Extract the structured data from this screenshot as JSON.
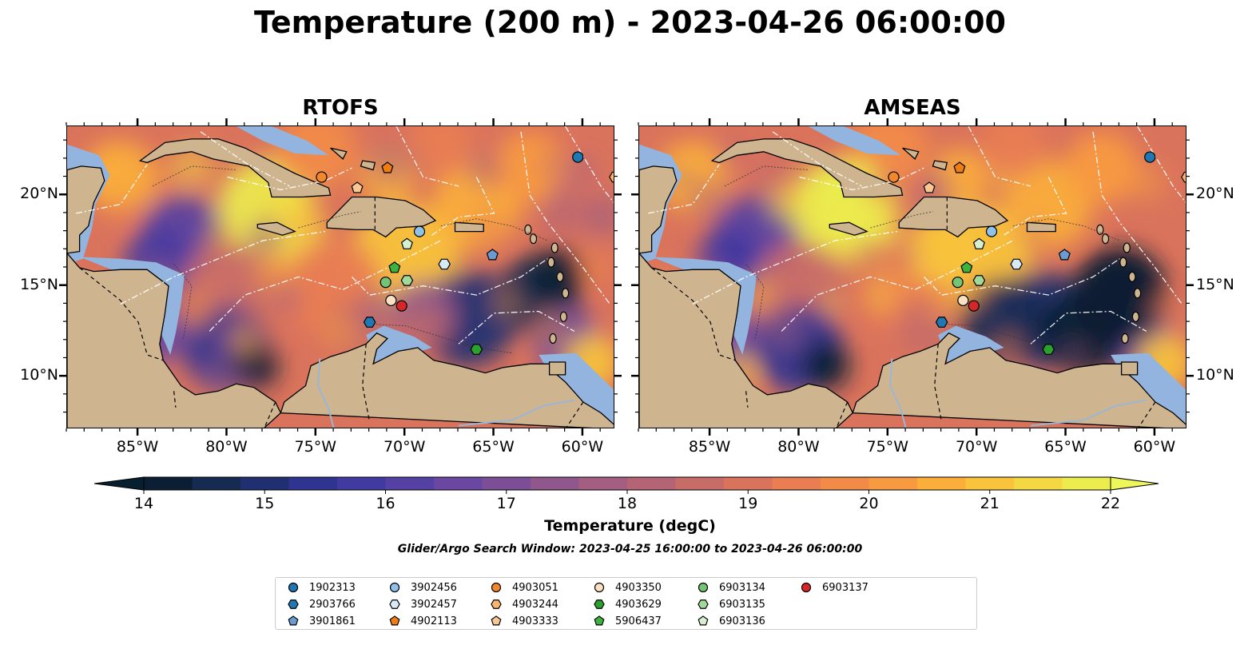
{
  "title": "Temperature (200 m) - 2023-04-26 06:00:00",
  "panels": [
    {
      "title": "RTOFS"
    },
    {
      "title": "AMSEAS"
    }
  ],
  "axes": {
    "lon_ticks": [
      "85°W",
      "80°W",
      "75°W",
      "70°W",
      "65°W",
      "60°W"
    ],
    "lon_values": [
      -85,
      -80,
      -75,
      -70,
      -65,
      -60
    ],
    "lat_ticks": [
      "20°N",
      "15°N",
      "10°N"
    ],
    "lat_values": [
      20,
      15,
      10
    ],
    "lon_range": [
      -89,
      -58.2
    ],
    "lat_range": [
      7.1,
      23.8
    ]
  },
  "colorbar": {
    "label": "Temperature (degC)",
    "ticks": [
      "14",
      "15",
      "16",
      "17",
      "18",
      "19",
      "20",
      "21",
      "22"
    ],
    "range": [
      14,
      22
    ],
    "colors": [
      "#0b1e33",
      "#162b52",
      "#202f71",
      "#2f3490",
      "#413aa0",
      "#5540a3",
      "#6a47a1",
      "#7c4e98",
      "#8f578c",
      "#a45e82",
      "#b56476",
      "#c86c68",
      "#da735c",
      "#e97e52",
      "#f28b48",
      "#f89b40",
      "#fbaf3a",
      "#f9c43b",
      "#f3d843",
      "#ecec4e"
    ],
    "extend_low": "#07202f",
    "extend_high": "#eef75a"
  },
  "search_window": "Glider/Argo Search Window: 2023-04-25 16:00:00 to 2023-04-26 06:00:00",
  "legend": {
    "entries": [
      {
        "label": "1902313",
        "shape": "circle",
        "color": "#1f77b4"
      },
      {
        "label": "2903766",
        "shape": "hexagon",
        "color": "#1f77b4"
      },
      {
        "label": "3901861",
        "shape": "pentagon",
        "color": "#6a9bd1"
      },
      {
        "label": "3902456",
        "shape": "circle",
        "color": "#8fc1ea"
      },
      {
        "label": "3902457",
        "shape": "hexagon",
        "color": "#d6eaf8"
      },
      {
        "label": "4902113",
        "shape": "pentagon",
        "color": "#f07d12"
      },
      {
        "label": "4903051",
        "shape": "circle",
        "color": "#f2882a"
      },
      {
        "label": "4903244",
        "shape": "hexagon",
        "color": "#fbb56c"
      },
      {
        "label": "4903333",
        "shape": "pentagon",
        "color": "#f9c792"
      },
      {
        "label": "4903350",
        "shape": "circle",
        "color": "#fbe0c4"
      },
      {
        "label": "4903629",
        "shape": "hexagon",
        "color": "#2ca02c"
      },
      {
        "label": "5906437",
        "shape": "pentagon",
        "color": "#3cb33c"
      },
      {
        "label": "6903134",
        "shape": "circle",
        "color": "#74c476"
      },
      {
        "label": "6903135",
        "shape": "hexagon",
        "color": "#a1d99b"
      },
      {
        "label": "6903136",
        "shape": "pentagon",
        "color": "#d5efcf"
      },
      {
        "label": "6903137",
        "shape": "circle",
        "color": "#d62728"
      }
    ]
  },
  "floats": [
    {
      "id": "1902313",
      "lon": -60.3,
      "lat": 22.1
    },
    {
      "id": "4903244",
      "lon": -58.2,
      "lat": 21.0
    },
    {
      "id": "4903051",
      "lon": -74.7,
      "lat": 21.0
    },
    {
      "id": "4902113",
      "lon": -71.0,
      "lat": 21.5
    },
    {
      "id": "4903333",
      "lon": -72.7,
      "lat": 20.4
    },
    {
      "id": "3902456",
      "lon": -69.2,
      "lat": 18.0
    },
    {
      "id": "6903136",
      "lon": -69.9,
      "lat": 17.3
    },
    {
      "id": "3902457",
      "lon": -67.8,
      "lat": 16.2
    },
    {
      "id": "3901861",
      "lon": -65.1,
      "lat": 16.7
    },
    {
      "id": "5906437",
      "lon": -70.6,
      "lat": 16.0
    },
    {
      "id": "6903134",
      "lon": -71.1,
      "lat": 15.2
    },
    {
      "id": "6903135",
      "lon": -69.9,
      "lat": 15.3
    },
    {
      "id": "4903350",
      "lon": -70.8,
      "lat": 14.2
    },
    {
      "id": "6903137",
      "lon": -70.2,
      "lat": 13.9
    },
    {
      "id": "2903766",
      "lon": -72.0,
      "lat": 13.0
    },
    {
      "id": "4903629",
      "lon": -66.0,
      "lat": 11.5
    }
  ]
}
